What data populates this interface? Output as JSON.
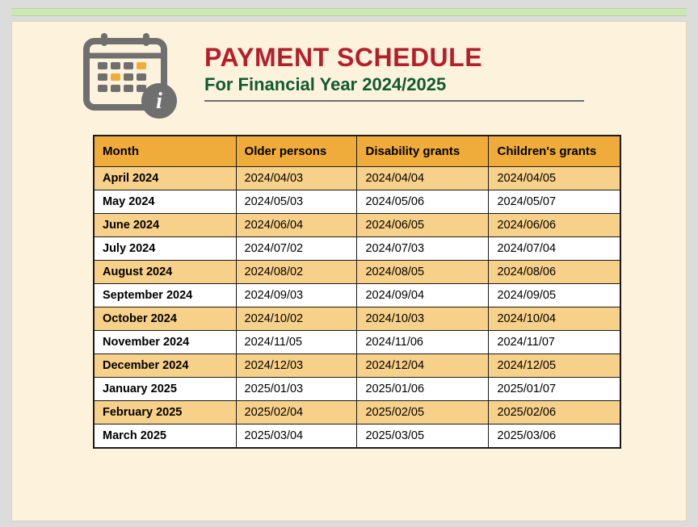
{
  "colors": {
    "page_bg": "#fdf3dc",
    "outer_bg": "#dcdcdc",
    "green_strip": "#cde6b3",
    "title_color": "#b41f2b",
    "subtitle_color": "#0f5b2f",
    "header_cell_bg": "#efac3a",
    "stripe_bg": "#f7d089",
    "plain_bg": "#ffffff",
    "border_color": "#1a1a1a",
    "icon_gray": "#6f6f6f",
    "icon_highlight": "#efac3a"
  },
  "typography": {
    "title_fontsize": 32,
    "subtitle_fontsize": 22,
    "cell_fontsize": 14.5,
    "header_cell_fontsize": 15,
    "font_family": "Arial"
  },
  "header": {
    "title": "PAYMENT SCHEDULE",
    "subtitle": "For Financial Year 2024/2025"
  },
  "table": {
    "type": "table",
    "columns": [
      "Month",
      "Older persons",
      "Disability grants",
      "Children's grants"
    ],
    "column_widths_pct": [
      27,
      23,
      25,
      25
    ],
    "row_striping": "odd rows #f7d089, even rows #ffffff",
    "rows": [
      [
        "April 2024",
        "2024/04/03",
        "2024/04/04",
        "2024/04/05"
      ],
      [
        "May 2024",
        "2024/05/03",
        "2024/05/06",
        "2024/05/07"
      ],
      [
        "June 2024",
        "2024/06/04",
        "2024/06/05",
        "2024/06/06"
      ],
      [
        "July 2024",
        "2024/07/02",
        "2024/07/03",
        "2024/07/04"
      ],
      [
        "August 2024",
        "2024/08/02",
        "2024/08/05",
        "2024/08/06"
      ],
      [
        "September 2024",
        "2024/09/03",
        "2024/09/04",
        "2024/09/05"
      ],
      [
        "October 2024",
        "2024/10/02",
        "2024/10/03",
        "2024/10/04"
      ],
      [
        "November 2024",
        "2024/11/05",
        "2024/11/06",
        "2024/11/07"
      ],
      [
        "December 2024",
        "2024/12/03",
        "2024/12/04",
        "2024/12/05"
      ],
      [
        "January 2025",
        "2025/01/03",
        "2025/01/06",
        "2025/01/07"
      ],
      [
        "February 2025",
        "2025/02/04",
        "2025/02/05",
        "2025/02/06"
      ],
      [
        "March 2025",
        "2025/03/04",
        "2025/03/05",
        "2025/03/06"
      ]
    ]
  }
}
